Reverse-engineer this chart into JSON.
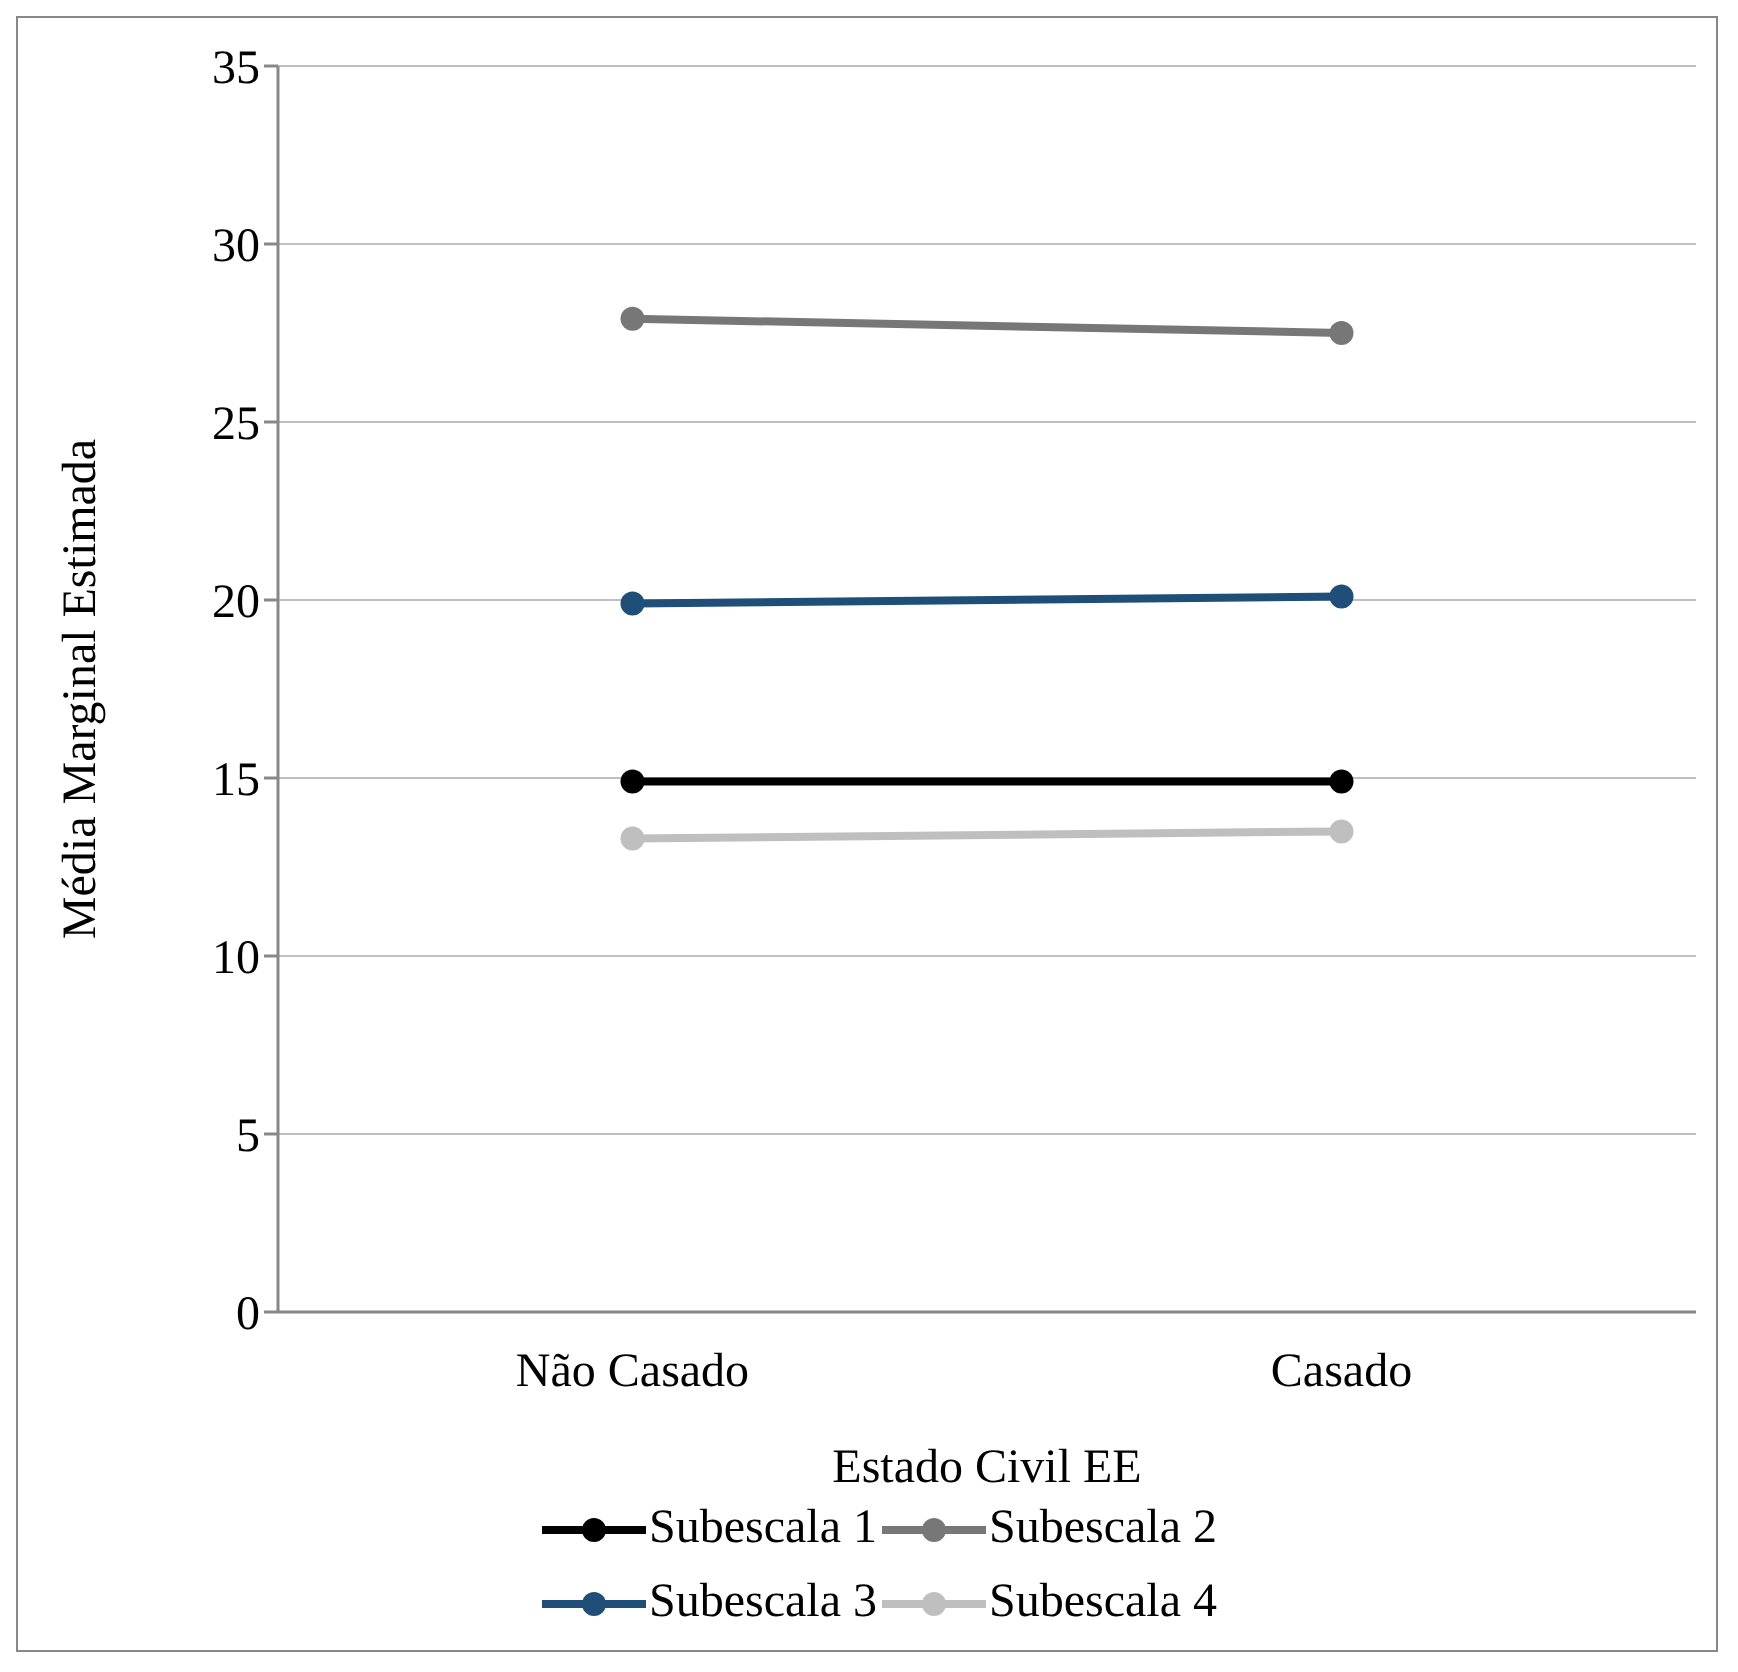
{
  "chart_data": {
    "type": "line",
    "xlabel": "Estado Civil EE",
    "ylabel": "Média Marginal Estimada",
    "categories": [
      "Não Casado",
      "Casado"
    ],
    "series": [
      {
        "name": "Subescala 1",
        "color": "#000000",
        "values": [
          14.9,
          14.9
        ]
      },
      {
        "name": "Subescala 2",
        "color": "#777777",
        "values": [
          27.9,
          27.5
        ]
      },
      {
        "name": "Subescala 3",
        "color": "#1f4e79",
        "values": [
          19.9,
          20.1
        ]
      },
      {
        "name": "Subescala 4",
        "color": "#bfbfbf",
        "values": [
          13.3,
          13.5
        ]
      }
    ],
    "ylim": [
      0,
      35
    ],
    "yticks": [
      0,
      5,
      10,
      15,
      20,
      25,
      30,
      35
    ],
    "grid": "y",
    "legend": "bottom",
    "marker": "circle",
    "line_style": "solid"
  }
}
